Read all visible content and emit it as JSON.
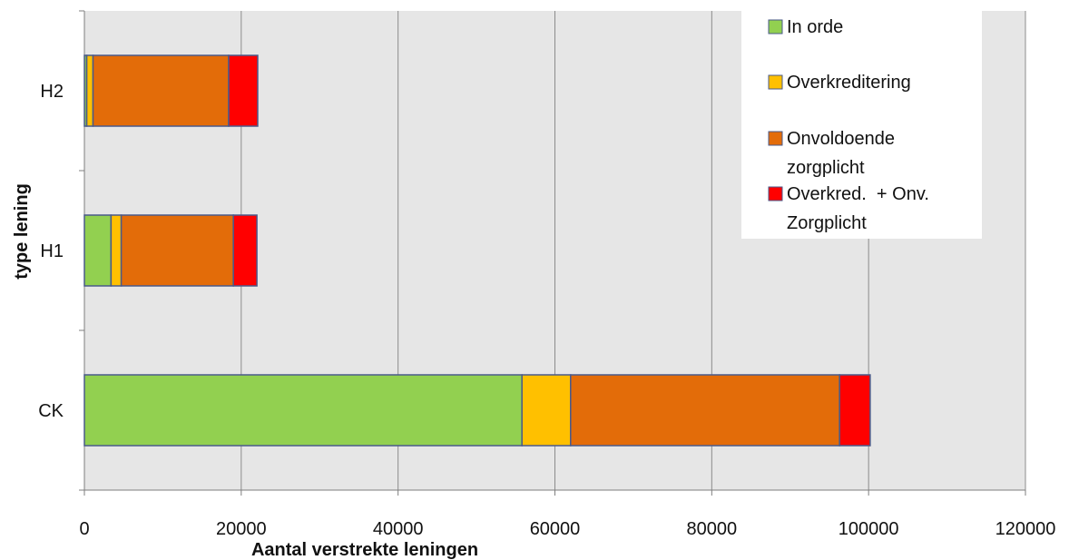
{
  "chart_data": {
    "type": "bar",
    "orientation": "horizontal",
    "stacked": true,
    "title": "",
    "xlabel": "Aantal verstrekte leningen",
    "ylabel": "type lening",
    "xlim": [
      0,
      120000
    ],
    "xticks": [
      0,
      20000,
      40000,
      60000,
      80000,
      100000,
      120000
    ],
    "xtick_labels": [
      "0",
      "20000",
      "40000",
      "60000",
      "80000",
      "100000",
      "120000"
    ],
    "categories": [
      "CK",
      "H1",
      "H2"
    ],
    "grid": true,
    "legend_position": "top-right",
    "series": [
      {
        "name": "In orde",
        "color": "#92D050",
        "values": [
          55800,
          3400,
          300
        ]
      },
      {
        "name": "Overkreditering",
        "color": "#FFC000",
        "values": [
          6200,
          1300,
          800
        ]
      },
      {
        "name": "Onvoldoende zorgplicht",
        "color": "#E36C09",
        "values": [
          34300,
          14300,
          17300
        ]
      },
      {
        "name": "Overkred. + Onv. Zorgplicht",
        "color": "#FF0000",
        "values": [
          3900,
          3000,
          3700
        ]
      }
    ],
    "legend": {
      "entries": [
        {
          "lines": [
            "In orde"
          ],
          "color": "#92D050"
        },
        {
          "lines": [
            "Overkreditering"
          ],
          "color": "#FFC000"
        },
        {
          "lines": [
            "Onvoldoende",
            "zorgplicht"
          ],
          "color": "#E36C09"
        },
        {
          "lines": [
            "Overkred.  + Onv.",
            "Zorgplicht"
          ],
          "color": "#FF0000"
        }
      ]
    },
    "colors": {
      "plot_background": "#E6E6E6",
      "gridline": "#8C8C8C",
      "bar_outline": "#4A5A8A"
    }
  }
}
